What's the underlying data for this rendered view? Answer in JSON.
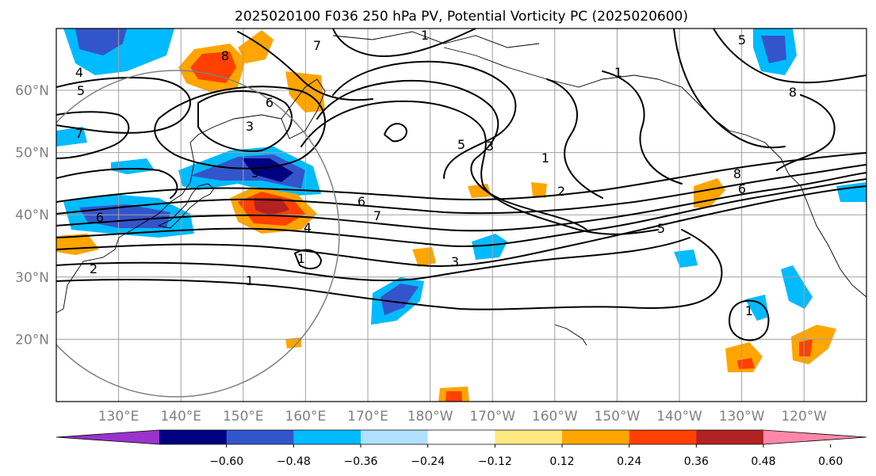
{
  "title": "2025020100 F036 250 hPa PV, Potential Vorticity PC (2025020600)",
  "map": {
    "lat_labels": [
      {
        "text": "60°N",
        "lat": 60
      },
      {
        "text": "50°N",
        "lat": 50
      },
      {
        "text": "40°N",
        "lat": 40
      },
      {
        "text": "30°N",
        "lat": 30
      },
      {
        "text": "20°N",
        "lat": 20
      }
    ],
    "lon_labels": [
      {
        "text": "130°E",
        "lon": 130
      },
      {
        "text": "140°E",
        "lon": 140
      },
      {
        "text": "150°E",
        "lon": 150
      },
      {
        "text": "160°E",
        "lon": 160
      },
      {
        "text": "170°E",
        "lon": 170
      },
      {
        "text": "180°W",
        "lon": 180
      },
      {
        "text": "170°W",
        "lon": 190
      },
      {
        "text": "160°W",
        "lon": 200
      },
      {
        "text": "150°W",
        "lon": 210
      },
      {
        "text": "140°W",
        "lon": 220
      },
      {
        "text": "130°W",
        "lon": 230
      },
      {
        "text": "120°W",
        "lon": 240
      }
    ],
    "contour_labels": [
      "1",
      "2",
      "3",
      "4",
      "5",
      "6",
      "7",
      "8"
    ]
  },
  "colorbar": {
    "colors": [
      "#9933cc",
      "#000080",
      "#3355cc",
      "#00bbff",
      "#b0e0ff",
      "#ffffff",
      "#ffe880",
      "#ffa500",
      "#ff4000",
      "#b22222",
      "#ff88aa"
    ],
    "labels": [
      "−0.60",
      "−0.48",
      "−0.36",
      "−0.24",
      "−0.12",
      "0.12",
      "0.24",
      "0.36",
      "0.48",
      "0.60"
    ]
  }
}
